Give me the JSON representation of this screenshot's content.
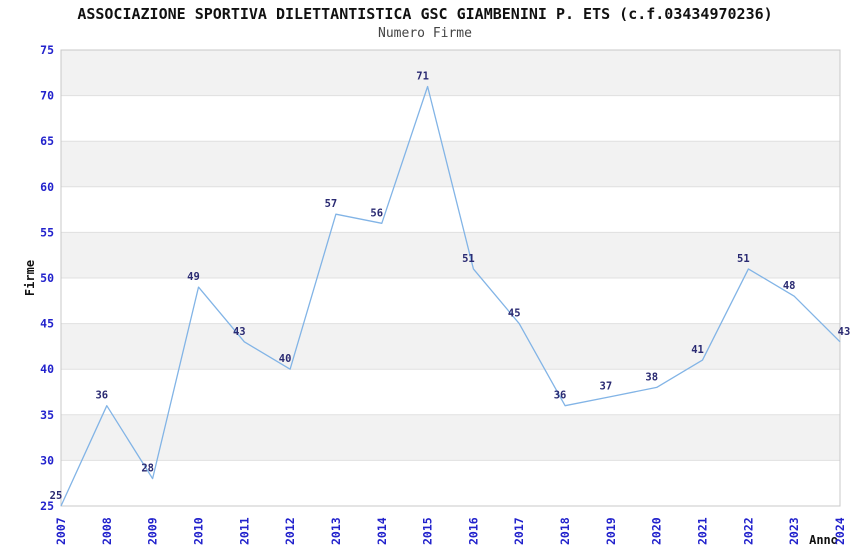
{
  "chart_data": {
    "type": "line",
    "title": "ASSOCIAZIONE SPORTIVA DILETTANTISTICA GSC GIAMBENINI P. ETS (c.f.03434970236)",
    "subtitle": "Numero Firme",
    "ylabel": "Firme",
    "xlabel": "Anno",
    "x": [
      "2007",
      "2008",
      "2009",
      "2010",
      "2011",
      "2012",
      "2013",
      "2014",
      "2015",
      "2016",
      "2017",
      "2018",
      "2019",
      "2020",
      "2021",
      "2022",
      "2023",
      "2024"
    ],
    "values": [
      25,
      36,
      28,
      49,
      43,
      40,
      57,
      56,
      71,
      51,
      45,
      36,
      37,
      38,
      41,
      51,
      48,
      43
    ],
    "ylim": [
      25,
      75
    ],
    "ytick_step": 5,
    "yticks": [
      25,
      30,
      35,
      40,
      45,
      50,
      55,
      60,
      65,
      70,
      75
    ],
    "point_labels_shown": true,
    "legend_position": "none",
    "grid": "horizontal-bands",
    "colors": {
      "line": "#82b4e6",
      "tick_label": "#2222cc",
      "point_label": "#2a2a72",
      "title": "#111111",
      "subtitle": "#444444",
      "axis_label": "#111111",
      "band_fill": "#f2f2f2",
      "gridline": "#e0e0e0",
      "plot_border": "#c8c8c8",
      "background": "#ffffff"
    }
  }
}
